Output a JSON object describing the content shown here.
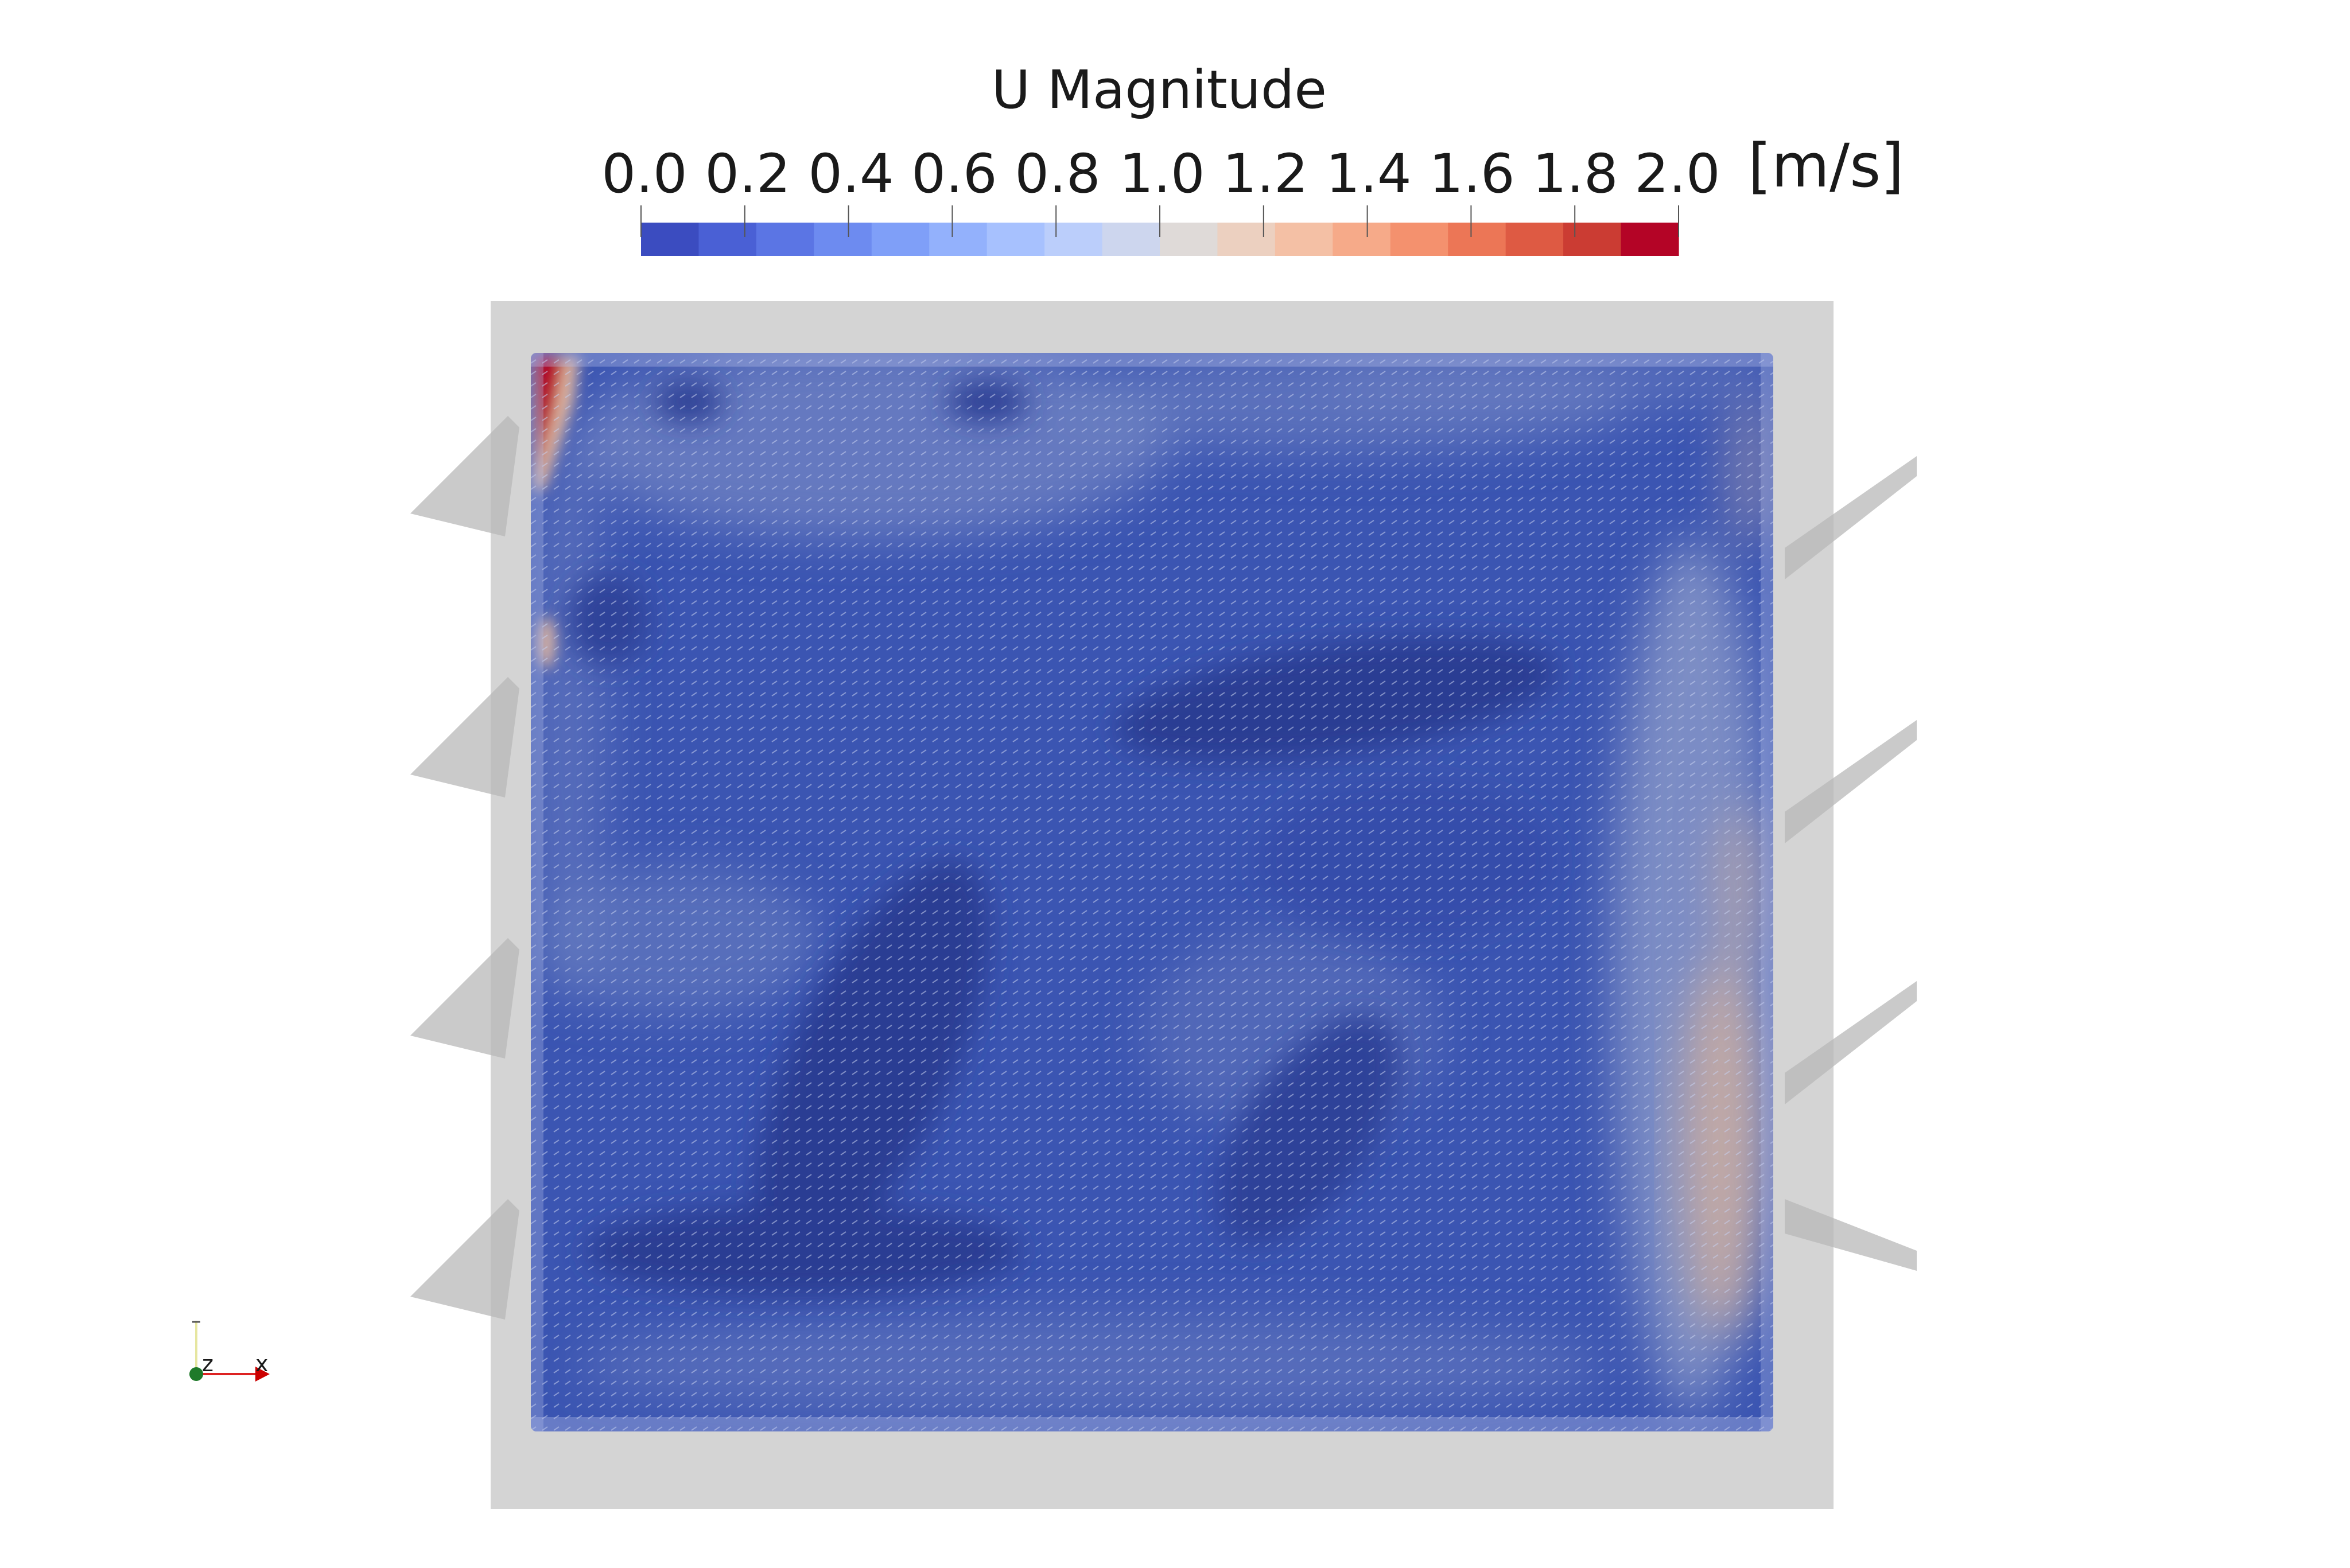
{
  "title": "U Magnitude",
  "units": "[m/s]",
  "colorbar": {
    "ticks": [
      "0.0",
      "0.2",
      "0.4",
      "0.6",
      "0.8",
      "1.0",
      "1.2",
      "1.4",
      "1.6",
      "1.8",
      "2.0"
    ],
    "range": [
      0.0,
      2.0
    ],
    "bands": [
      "#3b4cc0",
      "#4a60d5",
      "#5b75e4",
      "#6d8bf0",
      "#7f9ff8",
      "#93b1fc",
      "#a7c1fe",
      "#bbcefb",
      "#cdd6ee",
      "#dfdad8",
      "#ecd0c0",
      "#f4c0a5",
      "#f6aa89",
      "#f4916e",
      "#ec7656",
      "#de5a43",
      "#cb3c33",
      "#b40426"
    ]
  },
  "axes_triad": {
    "x": "x",
    "z": "z"
  },
  "colors": {
    "field_base": "#3b55b2",
    "field_dark": "#293e93",
    "field_light": "#6f83c3",
    "high": "#b40426",
    "mid": "#d9b39b",
    "frame": "#d4d4d4",
    "vanes": "#b8b8b8"
  }
}
